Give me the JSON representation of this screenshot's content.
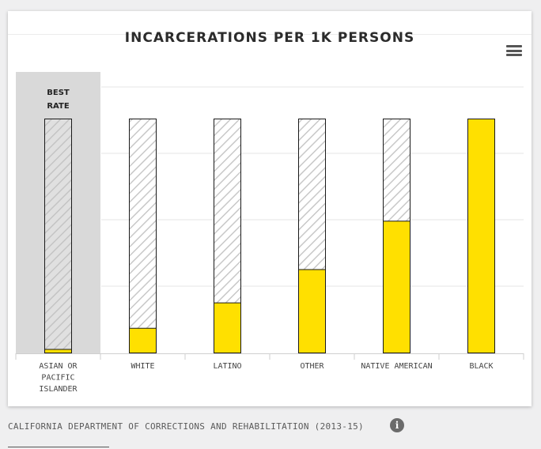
{
  "chart_data": {
    "type": "bar",
    "title": "INCARCERATIONS PER 1K PERSONS",
    "categories": [
      "ASIAN OR PACIFIC ISLANDER",
      "WHITE",
      "LATINO",
      "OTHER",
      "NATIVE AMERICAN",
      "BLACK"
    ],
    "category_lines": [
      [
        "ASIAN OR",
        "PACIFIC",
        "ISLANDER"
      ],
      [
        "WHITE"
      ],
      [
        "LATINO"
      ],
      [
        "OTHER"
      ],
      [
        "NATIVE AMERICAN"
      ],
      [
        "BLACK"
      ]
    ],
    "values_fraction_of_max": [
      0.017,
      0.107,
      0.215,
      0.357,
      0.563,
      1.0
    ],
    "highlight": {
      "category_index": 0,
      "label_lines": [
        "BEST",
        "RATE"
      ]
    },
    "grid": true,
    "colors": {
      "bar": "#ffe000",
      "bar_outline": "#1a1a1a",
      "highlight_band": "#d9d9d9",
      "hatch": "#c8c8c8"
    }
  },
  "source": {
    "text": "CALIFORNIA DEPARTMENT OF CORRECTIONS AND REHABILITATION (2013-15)",
    "info_glyph": "i"
  },
  "icons": {
    "menu": "hamburger-menu-icon",
    "info": "info-icon"
  }
}
